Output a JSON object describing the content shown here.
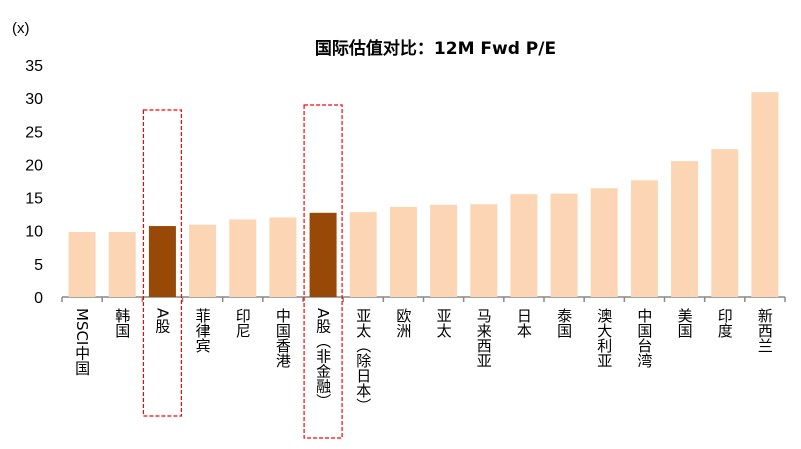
{
  "chart_data": {
    "type": "bar",
    "title": "国际估值对比：12M Fwd P/E",
    "ylabel": "(x)",
    "xlabel": "",
    "ylim": [
      0,
      35
    ],
    "yticks": [
      0,
      5,
      10,
      15,
      20,
      25,
      30,
      35
    ],
    "categories": [
      "MSCI中国",
      "韩国",
      "A股",
      "菲律宾",
      "印尼",
      "中国香港",
      "A股（非金融）",
      "亚太（除日本）",
      "欧洲",
      "亚太",
      "马来西亚",
      "日本",
      "泰国",
      "澳大利亚",
      "中国台湾",
      "美国",
      "印度",
      "新西兰"
    ],
    "values": [
      9.8,
      9.8,
      10.7,
      10.9,
      11.7,
      12.0,
      12.7,
      12.8,
      13.6,
      13.9,
      14.0,
      15.5,
      15.6,
      16.4,
      17.6,
      20.5,
      22.3,
      30.9
    ],
    "highlighted": [
      "A股",
      "A股（非金融）"
    ],
    "colors": {
      "default": "#FCD5B5",
      "highlight": "#984807",
      "box": "#FF0000",
      "axis": "#888888"
    }
  }
}
